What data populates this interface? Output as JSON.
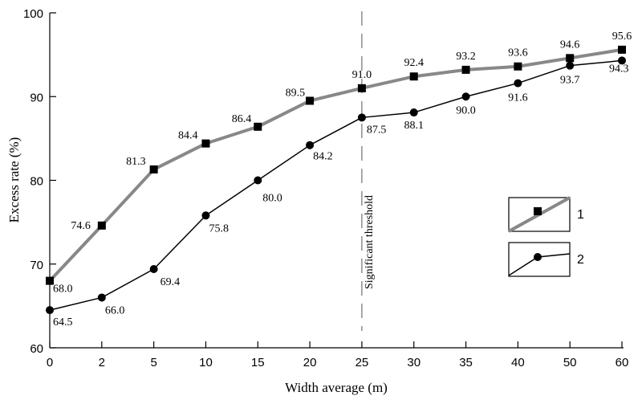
{
  "chart_data": {
    "type": "line",
    "categories": [
      "0",
      "2",
      "5",
      "10",
      "15",
      "20",
      "25",
      "30",
      "35",
      "40",
      "50",
      "60"
    ],
    "series": [
      {
        "name": "1",
        "color": "#888888",
        "marker": "square",
        "values": [
          68.0,
          74.6,
          81.3,
          84.4,
          86.4,
          89.5,
          91.0,
          92.4,
          93.2,
          93.6,
          94.6,
          95.6
        ],
        "labels": [
          "68.0",
          "74.6",
          "81.3",
          "84.4",
          "86.4",
          "89.5",
          "91.0",
          "92.4",
          "93.2",
          "93.6",
          "94.6",
          "95.6"
        ]
      },
      {
        "name": "2",
        "color": "#000000",
        "marker": "circle",
        "values": [
          64.5,
          66.0,
          69.4,
          75.8,
          80.0,
          84.2,
          87.5,
          88.1,
          90.0,
          91.6,
          93.7,
          94.3
        ],
        "labels": [
          "64.5",
          "66.0",
          "69.4",
          "75.8",
          "80.0",
          "84.2",
          "87.5",
          "88.1",
          "90.0",
          "91.6",
          "93.7",
          "94.3"
        ]
      }
    ],
    "xlabel": "Width average (m)",
    "ylabel": "Excess rate (%)",
    "ylim": [
      60,
      100
    ],
    "yticks": [
      "60",
      "70",
      "80",
      "90",
      "100"
    ],
    "grid": false,
    "legend": "right",
    "annotation": {
      "text": "Significant threshold",
      "at_category": "25"
    }
  }
}
